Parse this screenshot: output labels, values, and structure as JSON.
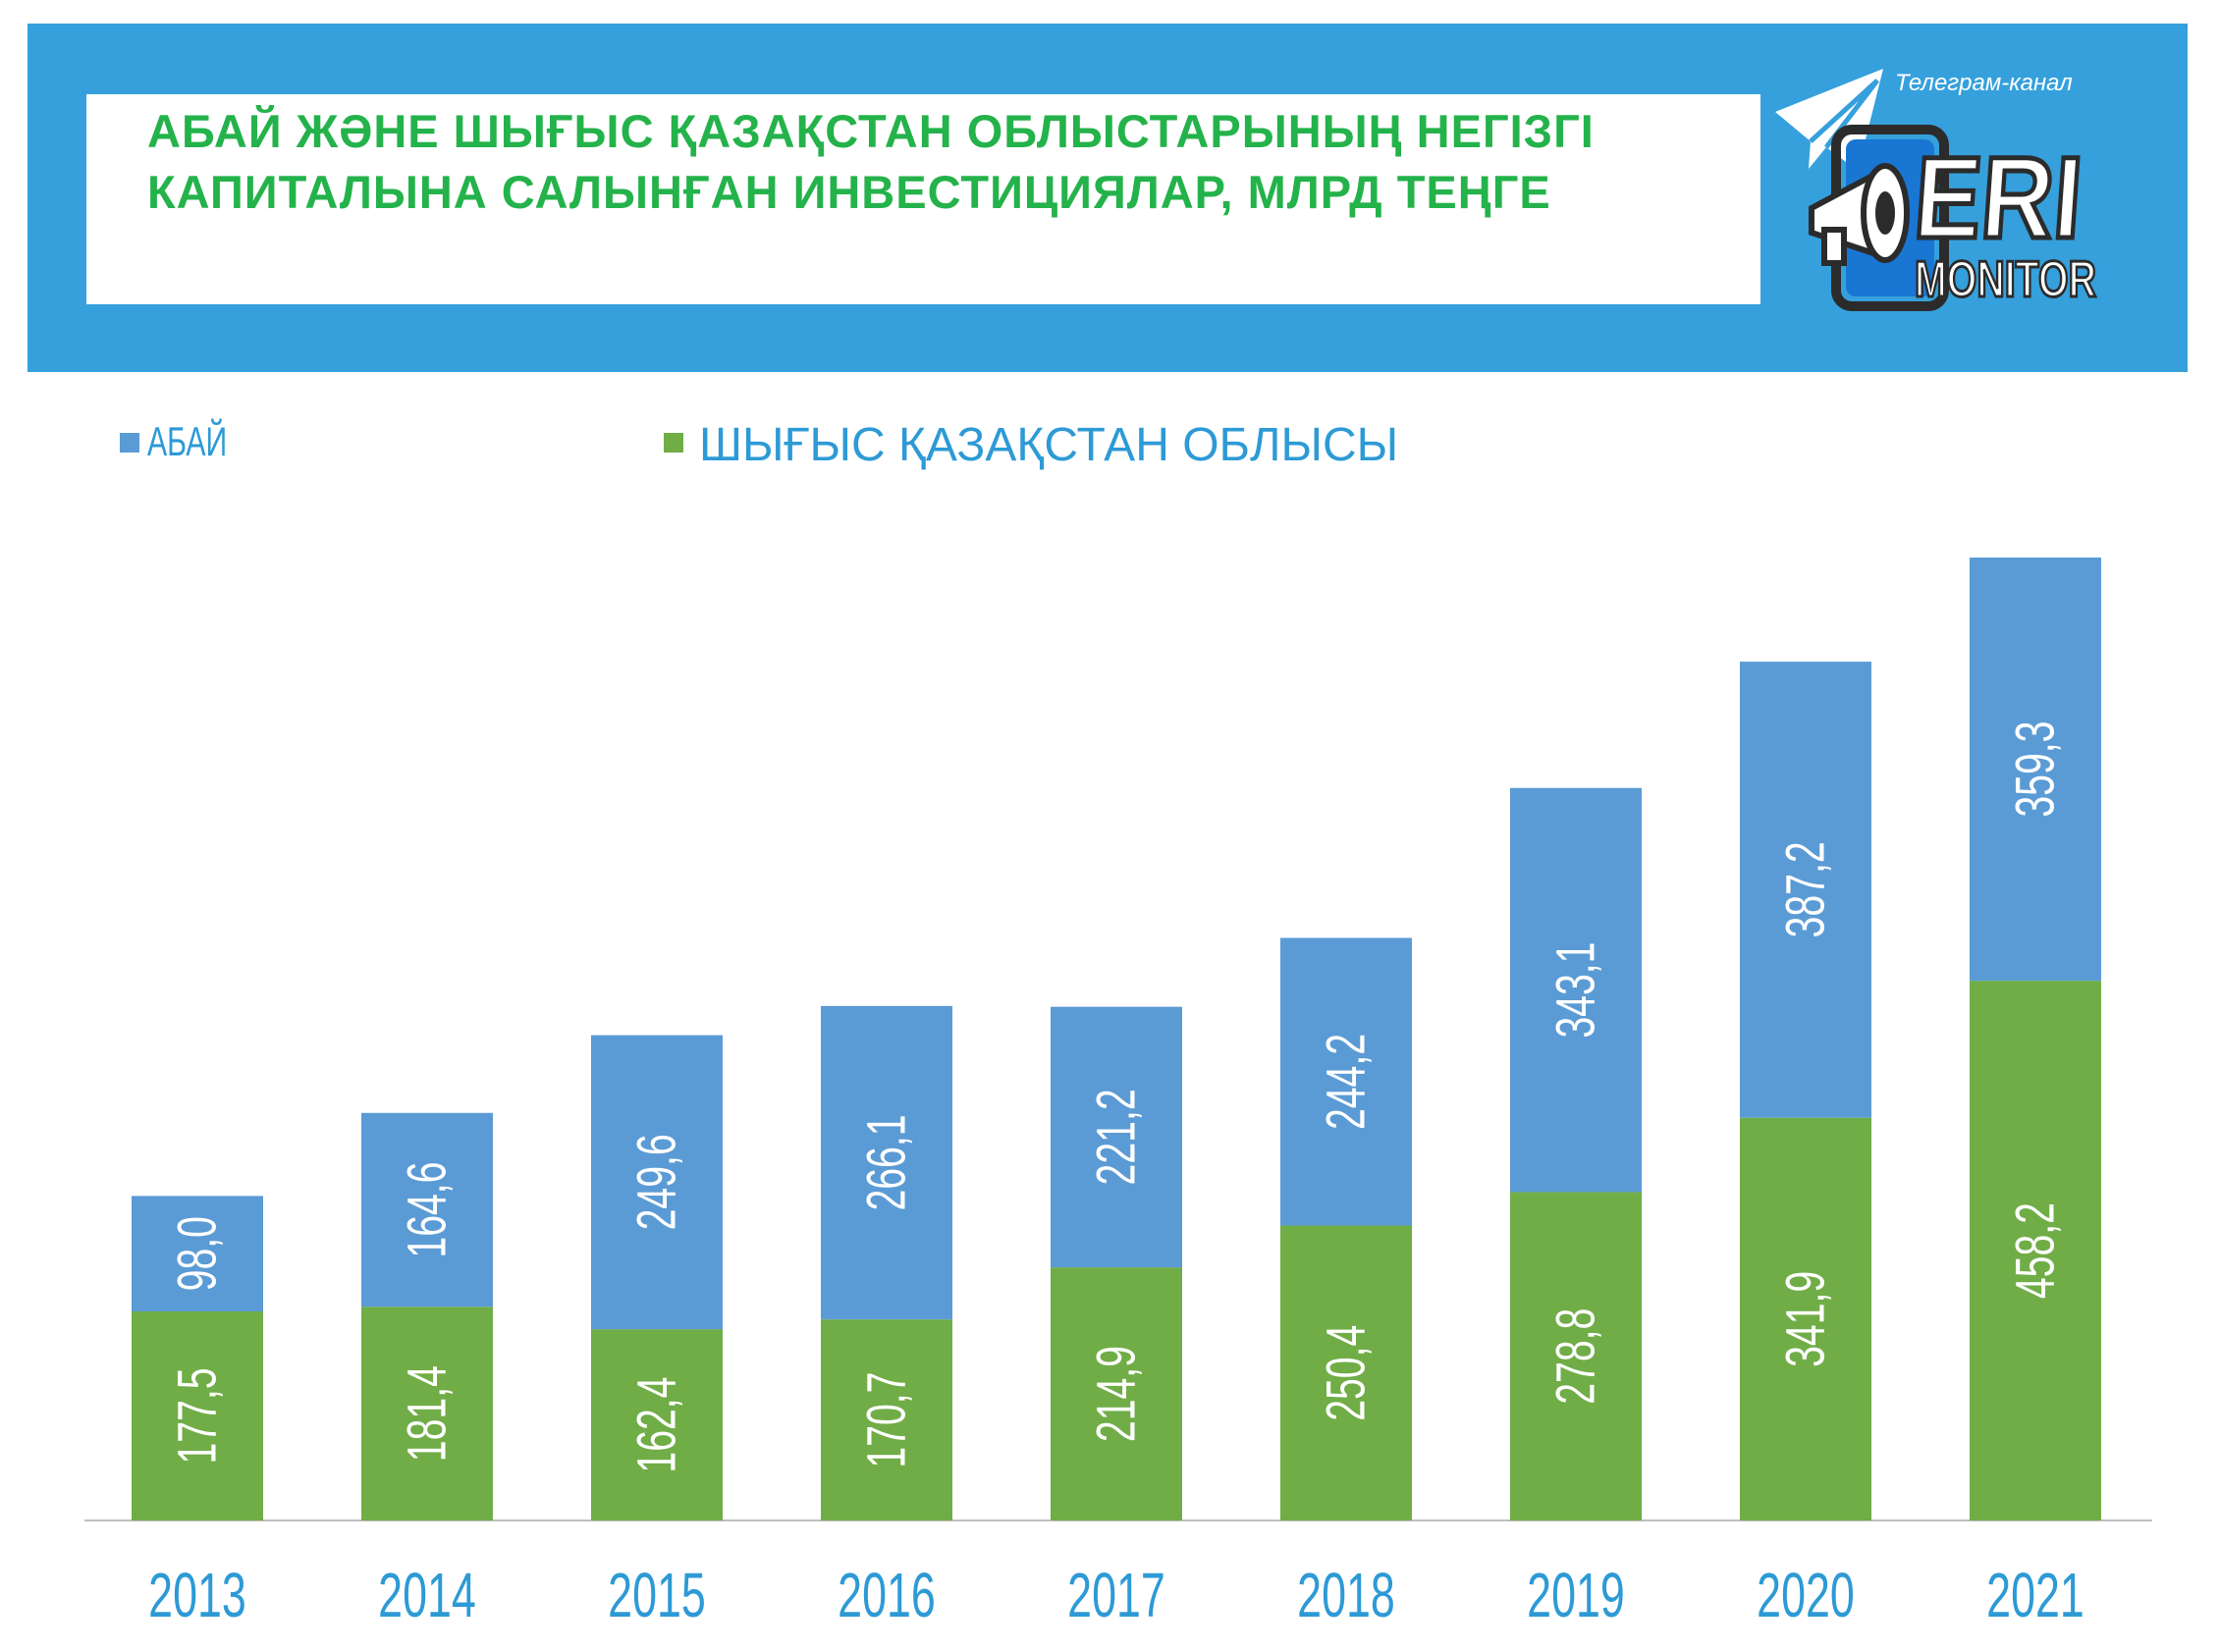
{
  "header": {
    "title_line1": "АБАЙ ЖӘНЕ ШЫҒЫС ҚАЗАҚСТАН ОБЛЫСТАРЫНЫҢ НЕГІЗГІ",
    "title_line2": "КАПИТАЛЫНА САЛЫНҒАН ИНВЕСТИЦИЯЛАР, МЛРД ТЕҢГЕ",
    "logo_caption": "Телеграм-канал",
    "logo_word1": "ERI",
    "logo_word2": "MONITOR",
    "logo_icons": [
      "paper-plane-icon",
      "megaphone-icon"
    ]
  },
  "colors": {
    "banner": "#35a0dc",
    "title": "#24b24b",
    "abai": "#5b9bd5",
    "east_kz": "#70ad47",
    "axis_labels": "#2d9ad6"
  },
  "chart_data": {
    "type": "bar",
    "stacked": true,
    "categories": [
      "2013",
      "2014",
      "2015",
      "2016",
      "2017",
      "2018",
      "2019",
      "2020",
      "2021"
    ],
    "series": [
      {
        "name": "ШЫҒЫС ҚАЗАҚСТАН ОБЛЫСЫ",
        "color": "#70ad47",
        "values": [
          177.5,
          181.4,
          162.4,
          170.7,
          214.9,
          250.4,
          278.8,
          341.9,
          458.2
        ],
        "labels": [
          "177,5",
          "181,4",
          "162,4",
          "170,7",
          "214,9",
          "250,4",
          "278,8",
          "341,9",
          "458,2"
        ]
      },
      {
        "name": "АБАЙ",
        "color": "#5b9bd5",
        "values": [
          98.0,
          164.6,
          249.6,
          266.1,
          221.2,
          244.2,
          343.1,
          387.2,
          359.3
        ],
        "labels": [
          "98,0",
          "164,6",
          "249,6",
          "266,1",
          "221,2",
          "244,2",
          "343,1",
          "387,2",
          "359,3"
        ]
      }
    ],
    "legend_position": "top",
    "grid": false
  }
}
